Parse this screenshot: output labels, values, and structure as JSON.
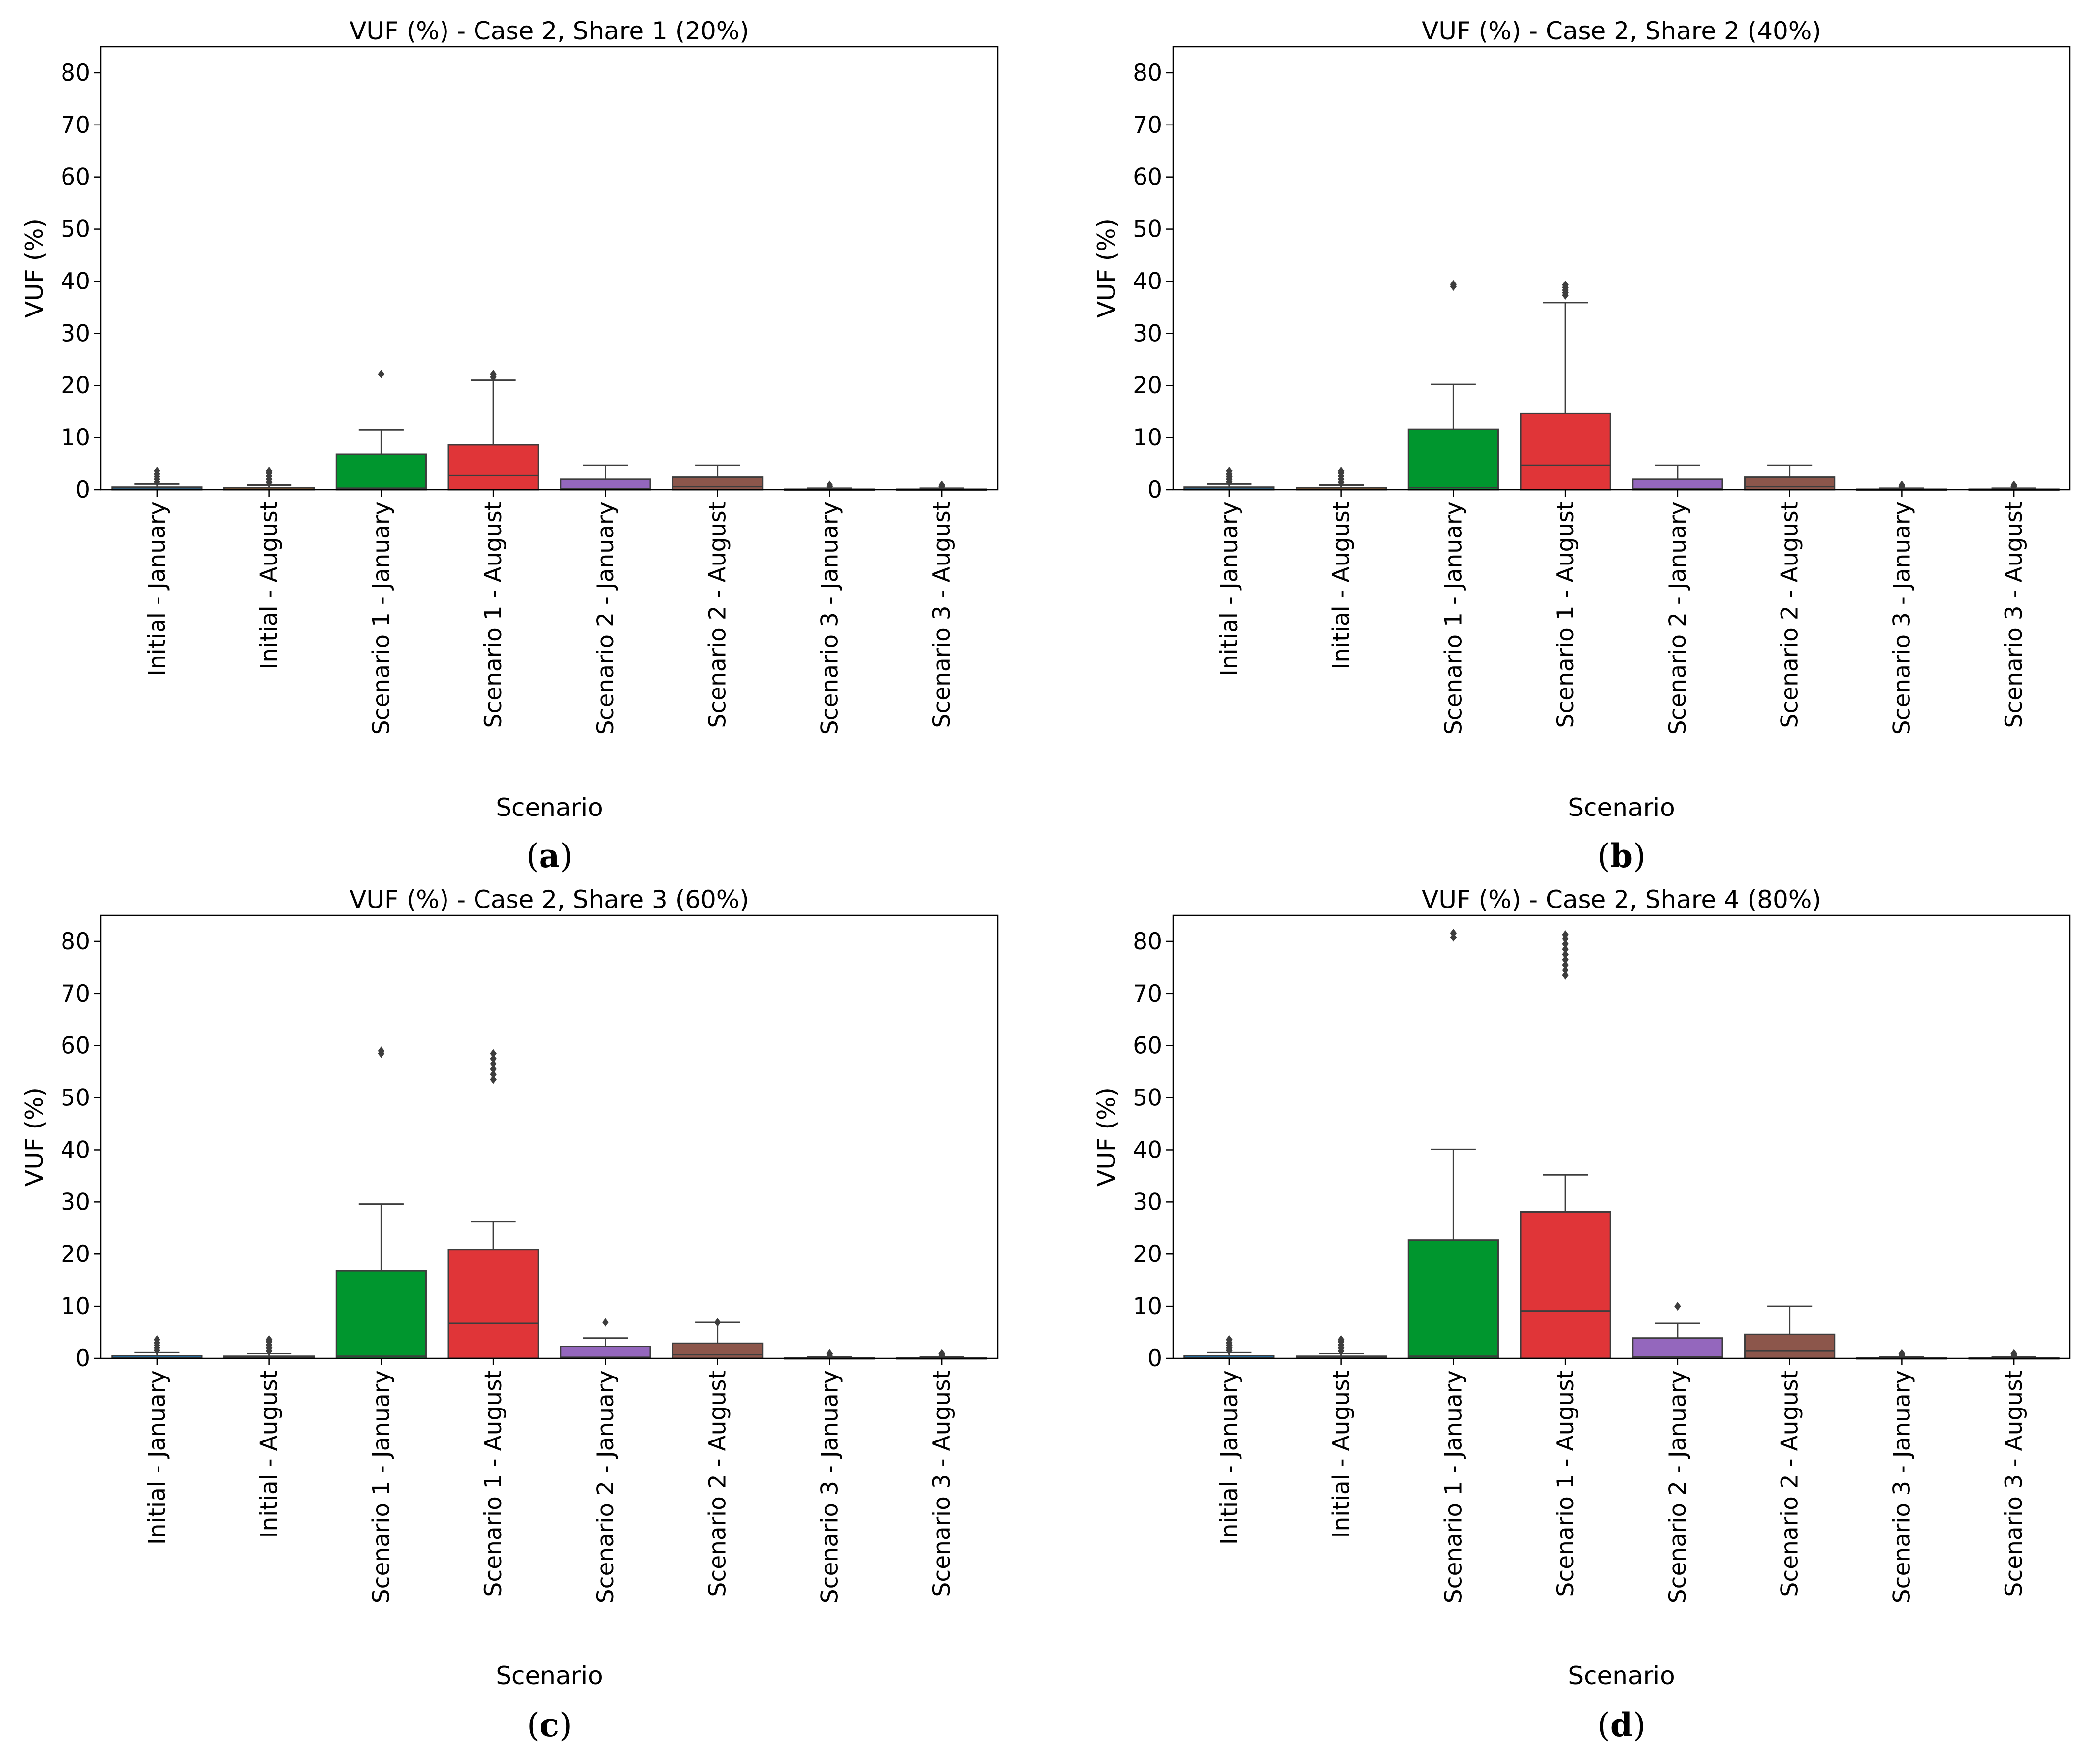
{
  "chart_data": [
    {
      "type": "box",
      "panel_label": "a",
      "title": "VUF (%) - Case 2, Share 1 (20%)",
      "xlabel": "Scenario",
      "ylabel": "VUF (%)",
      "ylim": [
        0,
        85
      ],
      "yticks": [
        0,
        10,
        20,
        30,
        40,
        50,
        60,
        70,
        80
      ],
      "categories": [
        "Initial - January",
        "Initial - August",
        "Scenario 1 - January",
        "Scenario 1 - August",
        "Scenario 2 - January",
        "Scenario 2 - August",
        "Scenario 3 - January",
        "Scenario 3 - August"
      ],
      "colors": [
        "#1f77b4",
        "#ff7f0e",
        "#00962e",
        "#e03538",
        "#9467bd",
        "#8c564b",
        "#e377c2",
        "#7f7f7f"
      ],
      "boxes": [
        {
          "min": 0,
          "q1": 0,
          "median": 0.1,
          "q3": 0.5,
          "max": 1.1,
          "outliers": [
            1.5,
            2.0,
            2.5,
            3.0,
            3.6
          ]
        },
        {
          "min": 0,
          "q1": 0,
          "median": 0.1,
          "q3": 0.4,
          "max": 0.9,
          "outliers": [
            1.4,
            2.0,
            2.6,
            3.2,
            3.6
          ]
        },
        {
          "min": 0,
          "q1": 0,
          "median": 0.3,
          "q3": 6.8,
          "max": 11.5,
          "outliers": [
            22.2
          ]
        },
        {
          "min": 0,
          "q1": 0,
          "median": 2.7,
          "q3": 8.6,
          "max": 21.0,
          "outliers": [
            21.6,
            22.2
          ]
        },
        {
          "min": 0,
          "q1": 0,
          "median": 0.2,
          "q3": 2.0,
          "max": 4.7,
          "outliers": []
        },
        {
          "min": 0,
          "q1": 0,
          "median": 0.6,
          "q3": 2.4,
          "max": 4.7,
          "outliers": []
        },
        {
          "min": 0,
          "q1": 0,
          "median": 0.05,
          "q3": 0.1,
          "max": 0.3,
          "outliers": [
            0.6,
            0.9
          ]
        },
        {
          "min": 0,
          "q1": 0,
          "median": 0.05,
          "q3": 0.1,
          "max": 0.3,
          "outliers": [
            0.6,
            0.9
          ]
        }
      ]
    },
    {
      "type": "box",
      "panel_label": "b",
      "title": "VUF (%) - Case 2, Share 2 (40%)",
      "xlabel": "Scenario",
      "ylabel": "VUF (%)",
      "ylim": [
        0,
        85
      ],
      "yticks": [
        0,
        10,
        20,
        30,
        40,
        50,
        60,
        70,
        80
      ],
      "categories": [
        "Initial - January",
        "Initial - August",
        "Scenario 1 - January",
        "Scenario 1 - August",
        "Scenario 2 - January",
        "Scenario 2 - August",
        "Scenario 3 - January",
        "Scenario 3 - August"
      ],
      "colors": [
        "#1f77b4",
        "#ff7f0e",
        "#00962e",
        "#e03538",
        "#9467bd",
        "#8c564b",
        "#e377c2",
        "#7f7f7f"
      ],
      "boxes": [
        {
          "min": 0,
          "q1": 0,
          "median": 0.1,
          "q3": 0.5,
          "max": 1.1,
          "outliers": [
            1.5,
            2.0,
            2.5,
            3.0,
            3.6
          ]
        },
        {
          "min": 0,
          "q1": 0,
          "median": 0.1,
          "q3": 0.4,
          "max": 0.9,
          "outliers": [
            1.4,
            2.0,
            2.6,
            3.2,
            3.6
          ]
        },
        {
          "min": 0,
          "q1": 0,
          "median": 0.4,
          "q3": 11.6,
          "max": 20.2,
          "outliers": [
            39.0,
            39.4
          ]
        },
        {
          "min": 0,
          "q1": 0,
          "median": 4.7,
          "q3": 14.6,
          "max": 35.9,
          "outliers": [
            37.3,
            37.8,
            38.3,
            38.8,
            39.3
          ]
        },
        {
          "min": 0,
          "q1": 0,
          "median": 0.2,
          "q3": 2.0,
          "max": 4.7,
          "outliers": []
        },
        {
          "min": 0,
          "q1": 0,
          "median": 0.6,
          "q3": 2.4,
          "max": 4.7,
          "outliers": []
        },
        {
          "min": 0,
          "q1": 0,
          "median": 0.05,
          "q3": 0.1,
          "max": 0.3,
          "outliers": [
            0.6,
            0.9
          ]
        },
        {
          "min": 0,
          "q1": 0,
          "median": 0.05,
          "q3": 0.1,
          "max": 0.3,
          "outliers": [
            0.6,
            0.9
          ]
        }
      ]
    },
    {
      "type": "box",
      "panel_label": "c",
      "title": "VUF (%) - Case 2, Share 3 (60%)",
      "xlabel": "Scenario",
      "ylabel": "VUF (%)",
      "ylim": [
        0,
        85
      ],
      "yticks": [
        0,
        10,
        20,
        30,
        40,
        50,
        60,
        70,
        80
      ],
      "categories": [
        "Initial - January",
        "Initial - August",
        "Scenario 1 - January",
        "Scenario 1 - August",
        "Scenario 2 - January",
        "Scenario 2 - August",
        "Scenario 3 - January",
        "Scenario 3 - August"
      ],
      "colors": [
        "#1f77b4",
        "#ff7f0e",
        "#00962e",
        "#e03538",
        "#9467bd",
        "#8c564b",
        "#e377c2",
        "#7f7f7f"
      ],
      "boxes": [
        {
          "min": 0,
          "q1": 0,
          "median": 0.1,
          "q3": 0.5,
          "max": 1.1,
          "outliers": [
            1.5,
            2.0,
            2.5,
            3.0,
            3.6
          ]
        },
        {
          "min": 0,
          "q1": 0,
          "median": 0.1,
          "q3": 0.4,
          "max": 0.9,
          "outliers": [
            1.4,
            2.0,
            2.6,
            3.2,
            3.6
          ]
        },
        {
          "min": 0,
          "q1": 0,
          "median": 0.4,
          "q3": 16.8,
          "max": 29.6,
          "outliers": [
            58.5,
            59.0
          ]
        },
        {
          "min": 0,
          "q1": 0,
          "median": 6.7,
          "q3": 20.9,
          "max": 26.2,
          "outliers": [
            53.5,
            54.5,
            55.5,
            56.5,
            57.5,
            58.5
          ]
        },
        {
          "min": 0,
          "q1": 0,
          "median": 0.2,
          "q3": 2.3,
          "max": 3.9,
          "outliers": [
            6.9
          ]
        },
        {
          "min": 0,
          "q1": 0,
          "median": 0.7,
          "q3": 2.9,
          "max": 6.9,
          "outliers": [
            6.9
          ]
        },
        {
          "min": 0,
          "q1": 0,
          "median": 0.05,
          "q3": 0.1,
          "max": 0.3,
          "outliers": [
            0.6,
            0.9
          ]
        },
        {
          "min": 0,
          "q1": 0,
          "median": 0.05,
          "q3": 0.1,
          "max": 0.3,
          "outliers": [
            0.6,
            0.9
          ]
        }
      ]
    },
    {
      "type": "box",
      "panel_label": "d",
      "title": "VUF (%) - Case 2, Share 4 (80%)",
      "xlabel": "Scenario",
      "ylabel": "VUF (%)",
      "ylim": [
        0,
        85
      ],
      "yticks": [
        0,
        10,
        20,
        30,
        40,
        50,
        60,
        70,
        80
      ],
      "categories": [
        "Initial - January",
        "Initial - August",
        "Scenario 1 - January",
        "Scenario 1 - August",
        "Scenario 2 - January",
        "Scenario 2 - August",
        "Scenario 3 - January",
        "Scenario 3 - August"
      ],
      "colors": [
        "#1f77b4",
        "#ff7f0e",
        "#00962e",
        "#e03538",
        "#9467bd",
        "#8c564b",
        "#e377c2",
        "#7f7f7f"
      ],
      "boxes": [
        {
          "min": 0,
          "q1": 0,
          "median": 0.1,
          "q3": 0.5,
          "max": 1.1,
          "outliers": [
            1.5,
            2.0,
            2.5,
            3.0,
            3.6
          ]
        },
        {
          "min": 0,
          "q1": 0,
          "median": 0.1,
          "q3": 0.4,
          "max": 0.9,
          "outliers": [
            1.4,
            2.0,
            2.6,
            3.2,
            3.6
          ]
        },
        {
          "min": 0,
          "q1": 0,
          "median": 0.4,
          "q3": 22.7,
          "max": 40.1,
          "outliers": [
            80.8,
            81.6
          ]
        },
        {
          "min": 0,
          "q1": 0,
          "median": 9.1,
          "q3": 28.1,
          "max": 35.2,
          "outliers": [
            73.5,
            74.5,
            75.5,
            76.5,
            77.5,
            78.5,
            79.5,
            80.5,
            81.3
          ]
        },
        {
          "min": 0,
          "q1": 0,
          "median": 0.3,
          "q3": 3.9,
          "max": 6.7,
          "outliers": [
            10.0
          ]
        },
        {
          "min": 0,
          "q1": 0,
          "median": 1.4,
          "q3": 4.6,
          "max": 10.0,
          "outliers": []
        },
        {
          "min": 0,
          "q1": 0,
          "median": 0.05,
          "q3": 0.1,
          "max": 0.3,
          "outliers": [
            0.6,
            0.9
          ]
        },
        {
          "min": 0,
          "q1": 0,
          "median": 0.05,
          "q3": 0.1,
          "max": 0.3,
          "outliers": [
            0.6,
            0.9
          ]
        }
      ]
    }
  ]
}
